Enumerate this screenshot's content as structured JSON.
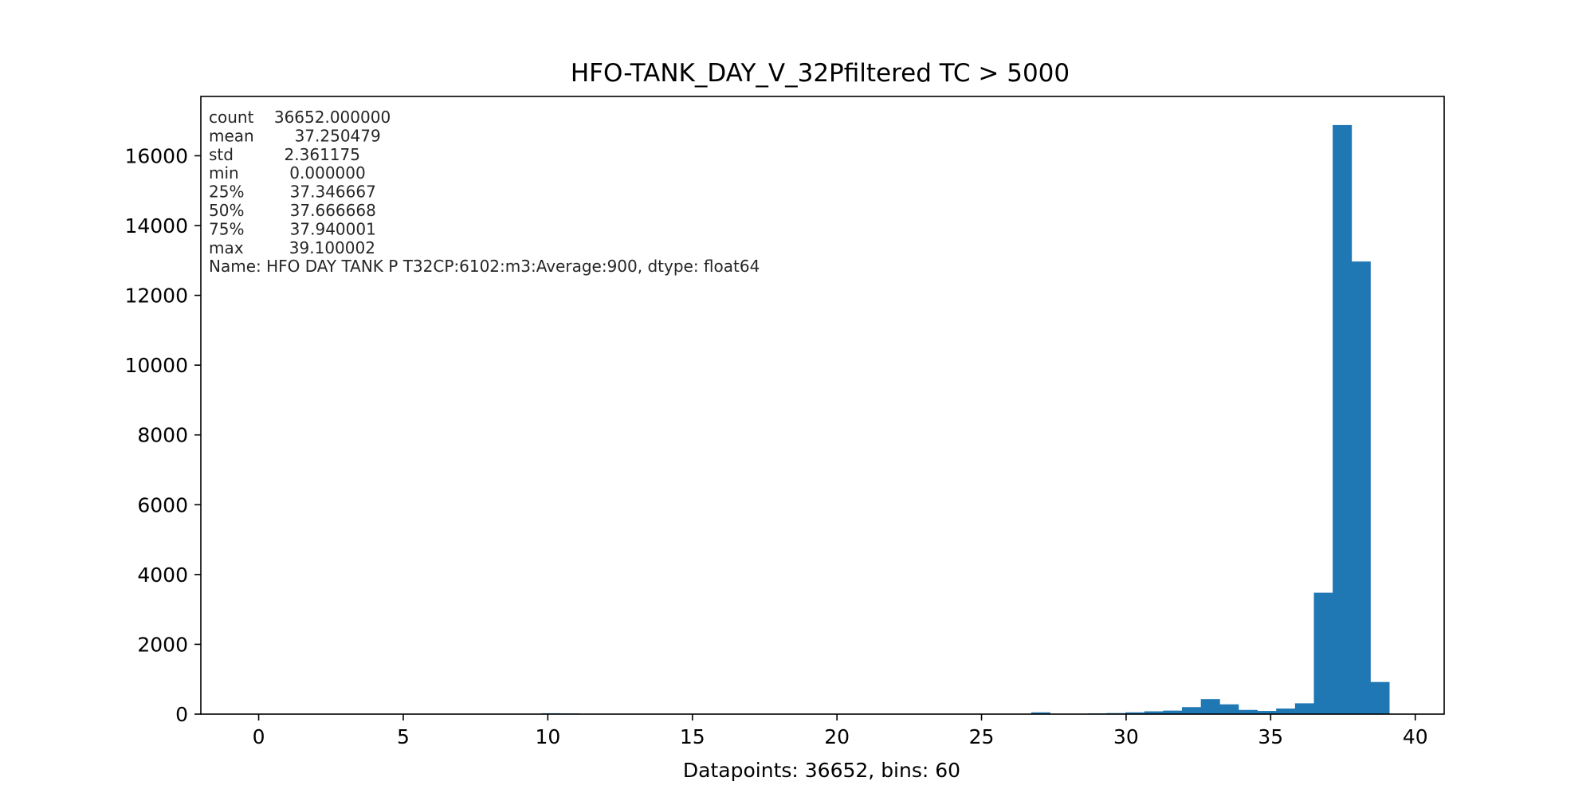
{
  "chart_data": {
    "type": "bar",
    "title": "HFO-TANK_DAY_V_32Pfiltered TC > 5000",
    "xlabel": "Datapoints: 36652, bins: 60",
    "ylabel": "",
    "xlim": [
      -2,
      41
    ],
    "ylim": [
      0,
      17700
    ],
    "xticks": [
      0,
      5,
      10,
      15,
      20,
      25,
      30,
      35,
      40
    ],
    "yticks": [
      0,
      2000,
      4000,
      6000,
      8000,
      10000,
      12000,
      14000,
      16000
    ],
    "bar_color": "#1f77b4",
    "bin_width": 0.65167,
    "bins": [
      {
        "x0": 9.775,
        "value": 25
      },
      {
        "x0": 10.427,
        "value": 20
      },
      {
        "x0": 26.719,
        "value": 50
      },
      {
        "x0": 28.674,
        "value": 20
      },
      {
        "x0": 29.325,
        "value": 30
      },
      {
        "x0": 29.977,
        "value": 50
      },
      {
        "x0": 30.629,
        "value": 80
      },
      {
        "x0": 31.28,
        "value": 100
      },
      {
        "x0": 31.932,
        "value": 200
      },
      {
        "x0": 32.584,
        "value": 430
      },
      {
        "x0": 33.235,
        "value": 280
      },
      {
        "x0": 33.887,
        "value": 120
      },
      {
        "x0": 34.539,
        "value": 90
      },
      {
        "x0": 35.19,
        "value": 160
      },
      {
        "x0": 35.842,
        "value": 310
      },
      {
        "x0": 36.494,
        "value": 3480
      },
      {
        "x0": 37.145,
        "value": 16880
      },
      {
        "x0": 37.797,
        "value": 12970
      },
      {
        "x0": 38.449,
        "value": 920
      }
    ],
    "stats_text": [
      "count    36652.000000",
      "mean        37.250479",
      "std          2.361175",
      "min          0.000000",
      "25%         37.346667",
      "50%         37.666668",
      "75%         37.940001",
      "max         39.100002",
      "Name: HFO DAY TANK P T32CP:6102:m3:Average:900, dtype: float64"
    ],
    "grid": false,
    "legend": "none"
  }
}
